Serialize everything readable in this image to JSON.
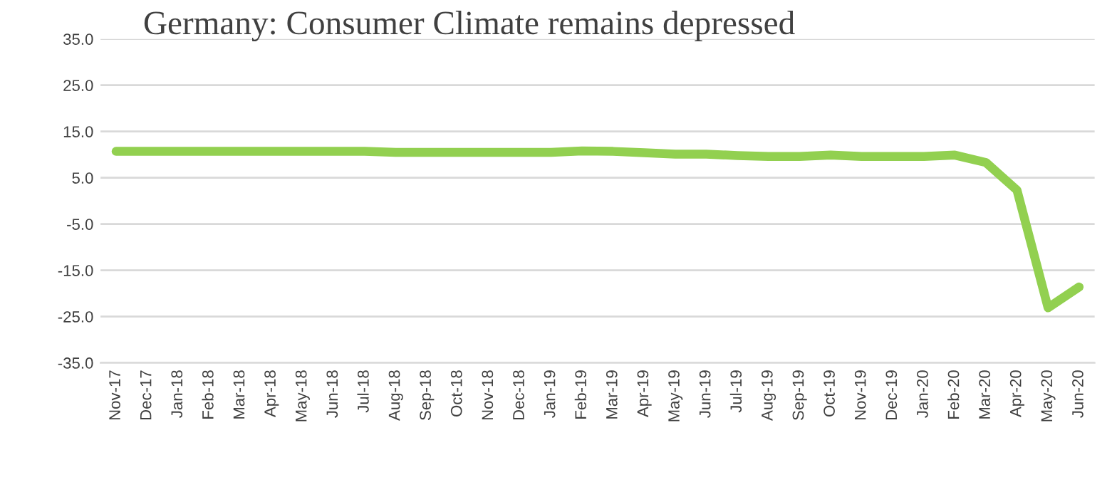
{
  "chart_data": {
    "type": "line",
    "title": "Germany: Consumer Climate remains depressed",
    "categories": [
      "Nov-17",
      "Dec-17",
      "Jan-18",
      "Feb-18",
      "Mar-18",
      "Apr-18",
      "May-18",
      "Jun-18",
      "Jul-18",
      "Aug-18",
      "Sep-18",
      "Oct-18",
      "Nov-18",
      "Dec-18",
      "Jan-19",
      "Feb-19",
      "Mar-19",
      "Apr-19",
      "May-19",
      "Jun-19",
      "Jul-19",
      "Aug-19",
      "Sep-19",
      "Oct-19",
      "Nov-19",
      "Dec-19",
      "Jan-20",
      "Feb-20",
      "Mar-20",
      "Apr-20",
      "May-20",
      "Jun-20"
    ],
    "series": [
      {
        "color": "#92d050",
        "values": [
          10.7,
          10.7,
          10.7,
          10.7,
          10.7,
          10.7,
          10.7,
          10.7,
          10.7,
          10.5,
          10.5,
          10.5,
          10.5,
          10.5,
          10.5,
          10.8,
          10.7,
          10.4,
          10.1,
          10.1,
          9.8,
          9.6,
          9.6,
          9.9,
          9.6,
          9.6,
          9.6,
          9.9,
          8.3,
          2.3,
          -23.1,
          -18.6
        ]
      }
    ],
    "ylim": [
      -35,
      35
    ],
    "yticks": [
      {
        "value": 35,
        "label": "35.0"
      },
      {
        "value": 25,
        "label": "25.0"
      },
      {
        "value": 15,
        "label": "15.0"
      },
      {
        "value": 5,
        "label": "5.0"
      },
      {
        "value": -5,
        "label": "-5.0"
      },
      {
        "value": -15,
        "label": "-15.0"
      },
      {
        "value": -25,
        "label": "-25.0"
      },
      {
        "value": -35,
        "label": "-35.0"
      }
    ],
    "grid": "y",
    "marker": "none",
    "line_style": "solid"
  }
}
